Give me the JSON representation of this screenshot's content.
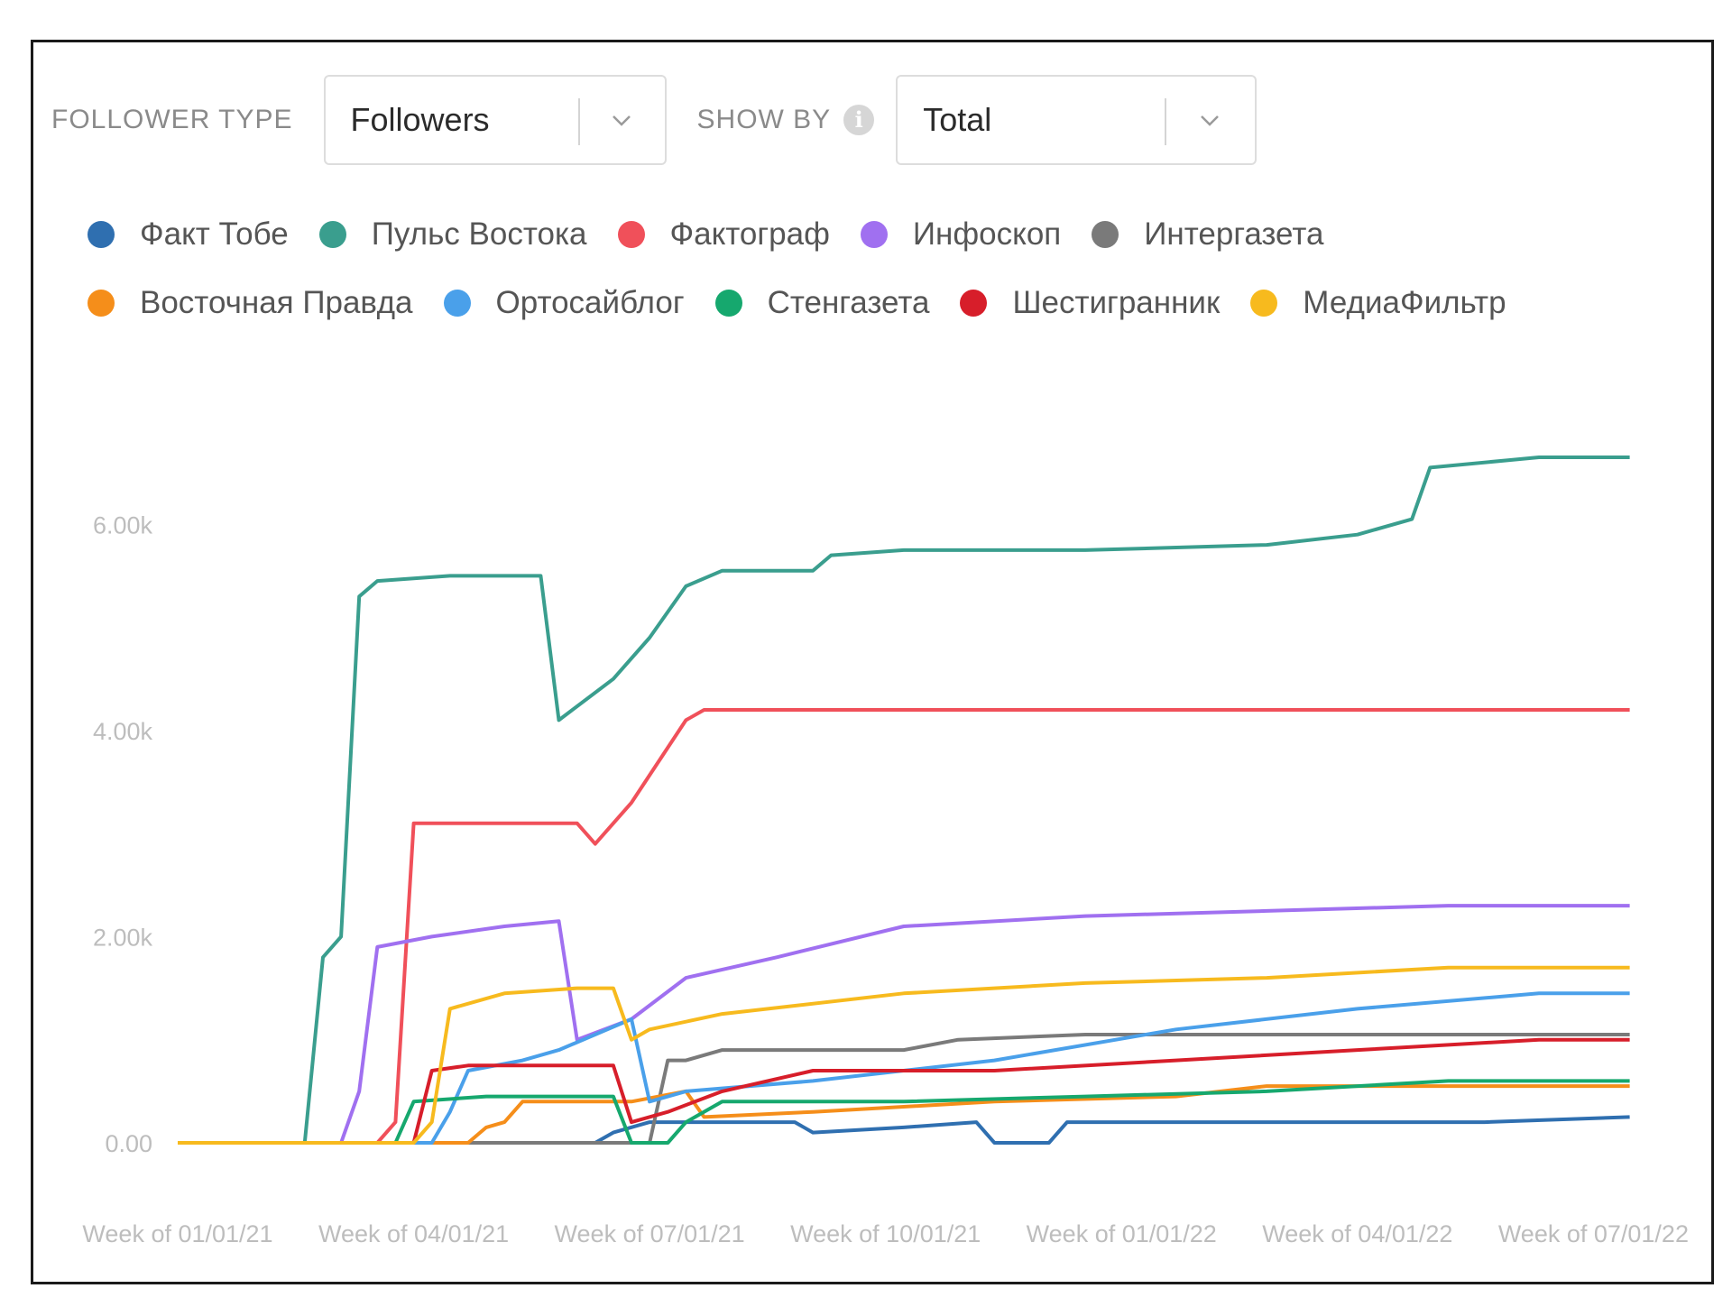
{
  "filters": {
    "follower_type_label": "FOLLOWER TYPE",
    "follower_type_value": "Followers",
    "show_by_label": "SHOW BY",
    "show_by_value": "Total"
  },
  "chart_data": {
    "type": "line",
    "title": "",
    "xlabel": "",
    "ylabel": "",
    "ylim": [
      0,
      7000
    ],
    "xlim": [
      0,
      83
    ],
    "yticks": [
      0,
      2000,
      4000,
      6000
    ],
    "ytick_labels": [
      "0.00",
      "2.00k",
      "4.00k",
      "6.00k"
    ],
    "xticks": [
      0,
      13,
      26,
      39,
      52,
      65,
      78
    ],
    "xtick_labels": [
      "Week of 01/01/21",
      "Week of 04/01/21",
      "Week of 07/01/21",
      "Week of 10/01/21",
      "Week of 01/01/22",
      "Week of 04/01/22",
      "Week of 07/01/22"
    ],
    "grid": false,
    "legend_position": "top",
    "series": [
      {
        "name": "Факт Тобе",
        "color": "#2f6fb0",
        "points": [
          [
            0,
            0
          ],
          [
            23,
            0
          ],
          [
            24,
            100
          ],
          [
            26,
            200
          ],
          [
            34,
            200
          ],
          [
            35,
            100
          ],
          [
            40,
            150
          ],
          [
            44,
            200
          ],
          [
            45,
            0
          ],
          [
            48,
            0
          ],
          [
            49,
            200
          ],
          [
            72,
            200
          ],
          [
            80,
            250
          ]
        ]
      },
      {
        "name": "Пульс Востока",
        "color": "#3a9e8e",
        "points": [
          [
            0,
            0
          ],
          [
            7,
            0
          ],
          [
            8,
            1800
          ],
          [
            9,
            2000
          ],
          [
            10,
            5300
          ],
          [
            11,
            5450
          ],
          [
            15,
            5500
          ],
          [
            20,
            5500
          ],
          [
            21,
            4100
          ],
          [
            24,
            4500
          ],
          [
            26,
            4900
          ],
          [
            28,
            5400
          ],
          [
            30,
            5550
          ],
          [
            35,
            5550
          ],
          [
            36,
            5700
          ],
          [
            40,
            5750
          ],
          [
            50,
            5750
          ],
          [
            60,
            5800
          ],
          [
            65,
            5900
          ],
          [
            68,
            6050
          ],
          [
            69,
            6550
          ],
          [
            75,
            6650
          ],
          [
            80,
            6650
          ]
        ]
      },
      {
        "name": "Фактограф",
        "color": "#f0505a",
        "points": [
          [
            0,
            0
          ],
          [
            11,
            0
          ],
          [
            12,
            200
          ],
          [
            13,
            3100
          ],
          [
            20,
            3100
          ],
          [
            22,
            3100
          ],
          [
            23,
            2900
          ],
          [
            25,
            3300
          ],
          [
            28,
            4100
          ],
          [
            29,
            4200
          ],
          [
            40,
            4200
          ],
          [
            60,
            4200
          ],
          [
            80,
            4200
          ]
        ]
      },
      {
        "name": "Инфоскоп",
        "color": "#a070f0",
        "points": [
          [
            0,
            0
          ],
          [
            9,
            0
          ],
          [
            10,
            500
          ],
          [
            11,
            1900
          ],
          [
            14,
            2000
          ],
          [
            18,
            2100
          ],
          [
            21,
            2150
          ],
          [
            22,
            1000
          ],
          [
            25,
            1200
          ],
          [
            28,
            1600
          ],
          [
            33,
            1800
          ],
          [
            40,
            2100
          ],
          [
            50,
            2200
          ],
          [
            60,
            2250
          ],
          [
            70,
            2300
          ],
          [
            80,
            2300
          ]
        ]
      },
      {
        "name": "Интергазета",
        "color": "#7a7a7a",
        "points": [
          [
            0,
            0
          ],
          [
            24,
            0
          ],
          [
            26,
            0
          ],
          [
            27,
            800
          ],
          [
            28,
            800
          ],
          [
            30,
            900
          ],
          [
            40,
            900
          ],
          [
            43,
            1000
          ],
          [
            50,
            1050
          ],
          [
            60,
            1050
          ],
          [
            70,
            1050
          ],
          [
            80,
            1050
          ]
        ]
      },
      {
        "name": "Восточная Правда",
        "color": "#f58e1a",
        "points": [
          [
            0,
            0
          ],
          [
            16,
            0
          ],
          [
            17,
            150
          ],
          [
            18,
            200
          ],
          [
            19,
            400
          ],
          [
            25,
            400
          ],
          [
            28,
            500
          ],
          [
            29,
            250
          ],
          [
            35,
            300
          ],
          [
            45,
            400
          ],
          [
            55,
            450
          ],
          [
            60,
            550
          ],
          [
            80,
            550
          ]
        ]
      },
      {
        "name": "Ортосайблог",
        "color": "#4aa0ea",
        "points": [
          [
            0,
            0
          ],
          [
            14,
            0
          ],
          [
            15,
            300
          ],
          [
            16,
            700
          ],
          [
            19,
            800
          ],
          [
            21,
            900
          ],
          [
            25,
            1200
          ],
          [
            26,
            400
          ],
          [
            28,
            500
          ],
          [
            35,
            600
          ],
          [
            45,
            800
          ],
          [
            55,
            1100
          ],
          [
            65,
            1300
          ],
          [
            75,
            1450
          ],
          [
            80,
            1450
          ]
        ]
      },
      {
        "name": "Стенгазета",
        "color": "#16a86e",
        "points": [
          [
            0,
            0
          ],
          [
            12,
            0
          ],
          [
            13,
            400
          ],
          [
            17,
            450
          ],
          [
            22,
            450
          ],
          [
            24,
            450
          ],
          [
            25,
            0
          ],
          [
            26,
            0
          ],
          [
            27,
            0
          ],
          [
            28,
            200
          ],
          [
            30,
            400
          ],
          [
            40,
            400
          ],
          [
            50,
            450
          ],
          [
            60,
            500
          ],
          [
            70,
            600
          ],
          [
            80,
            600
          ]
        ]
      },
      {
        "name": "Шестигранник",
        "color": "#d71e2a",
        "points": [
          [
            0,
            0
          ],
          [
            13,
            0
          ],
          [
            14,
            700
          ],
          [
            16,
            750
          ],
          [
            22,
            750
          ],
          [
            24,
            750
          ],
          [
            25,
            200
          ],
          [
            27,
            300
          ],
          [
            30,
            500
          ],
          [
            35,
            700
          ],
          [
            45,
            700
          ],
          [
            55,
            800
          ],
          [
            65,
            900
          ],
          [
            75,
            1000
          ],
          [
            80,
            1000
          ]
        ]
      },
      {
        "name": "МедиаФильтр",
        "color": "#f7ba1e",
        "points": [
          [
            0,
            0
          ],
          [
            13,
            0
          ],
          [
            14,
            200
          ],
          [
            15,
            1300
          ],
          [
            18,
            1450
          ],
          [
            22,
            1500
          ],
          [
            24,
            1500
          ],
          [
            25,
            1000
          ],
          [
            26,
            1100
          ],
          [
            30,
            1250
          ],
          [
            40,
            1450
          ],
          [
            50,
            1550
          ],
          [
            60,
            1600
          ],
          [
            70,
            1700
          ],
          [
            80,
            1700
          ]
        ]
      }
    ]
  }
}
